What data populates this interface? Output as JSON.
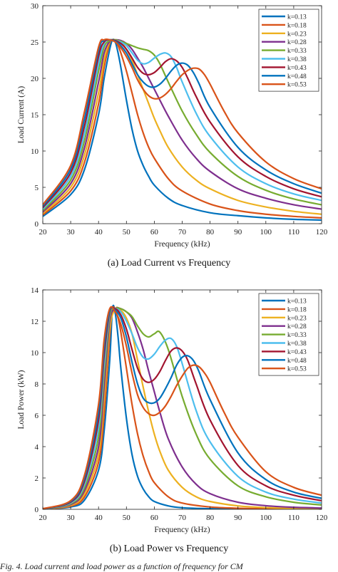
{
  "chart_data": [
    {
      "type": "line",
      "caption": "(a) Load Current vs Frequency",
      "xlabel": "Frequency (kHz)",
      "ylabel": "Load Current (A)",
      "xlim": [
        20,
        120
      ],
      "ylim": [
        0,
        30
      ],
      "xticks": [
        20,
        30,
        40,
        50,
        60,
        70,
        80,
        90,
        100,
        110,
        120
      ],
      "yticks": [
        0,
        5,
        10,
        15,
        20,
        25,
        30
      ],
      "legend_position": "top-right",
      "grid": false,
      "series": [
        {
          "name": "k=0.13",
          "color": "#0072BD",
          "x": [
            20,
            30,
            35,
            40,
            42,
            44,
            45,
            46,
            47,
            48,
            50,
            52,
            54,
            56,
            58,
            60,
            65,
            70,
            80,
            90,
            100,
            110,
            120
          ],
          "y": [
            1.0,
            4.0,
            7.5,
            15.0,
            20.0,
            24.0,
            25.3,
            25.0,
            23.5,
            21.5,
            17.0,
            13.0,
            10.0,
            8.0,
            6.5,
            5.3,
            3.5,
            2.5,
            1.5,
            1.1,
            0.8,
            0.6,
            0.5
          ]
        },
        {
          "name": "k=0.18",
          "color": "#D95319",
          "x": [
            20,
            30,
            35,
            40,
            42,
            44,
            45,
            46,
            47,
            48,
            50,
            52,
            54,
            56,
            58,
            60,
            65,
            70,
            80,
            90,
            100,
            110,
            120
          ],
          "y": [
            1.2,
            4.5,
            8.5,
            16.5,
            21.5,
            24.8,
            25.3,
            25.1,
            24.5,
            23.5,
            21.0,
            18.0,
            15.0,
            12.5,
            10.5,
            9.0,
            6.2,
            4.5,
            2.7,
            1.8,
            1.3,
            1.0,
            0.8
          ]
        },
        {
          "name": "k=0.23",
          "color": "#EDB120",
          "x": [
            20,
            30,
            35,
            40,
            42,
            44,
            46,
            48,
            50,
            52,
            54,
            56,
            58,
            60,
            62,
            65,
            70,
            75,
            80,
            90,
            100,
            110,
            120
          ],
          "y": [
            1.4,
            5.0,
            9.5,
            18.0,
            22.5,
            25.0,
            25.3,
            25.0,
            24.0,
            22.5,
            20.5,
            18.5,
            16.5,
            14.5,
            12.8,
            10.5,
            7.8,
            6.0,
            4.8,
            3.2,
            2.3,
            1.7,
            1.3
          ]
        },
        {
          "name": "k=0.28",
          "color": "#7E2F8E",
          "x": [
            20,
            30,
            35,
            40,
            42,
            44,
            46,
            48,
            50,
            52,
            54,
            56,
            58,
            60,
            62,
            65,
            70,
            75,
            80,
            90,
            100,
            110,
            120
          ],
          "y": [
            1.6,
            5.5,
            10.5,
            19.5,
            23.5,
            25.1,
            25.3,
            25.2,
            24.8,
            24.0,
            22.8,
            21.5,
            20.0,
            18.5,
            17.0,
            14.8,
            11.5,
            9.0,
            7.2,
            4.8,
            3.5,
            2.6,
            2.0
          ]
        },
        {
          "name": "k=0.33",
          "color": "#77AC30",
          "x": [
            20,
            30,
            35,
            40,
            42,
            44,
            46,
            48,
            50,
            52,
            54,
            56,
            58,
            60,
            62,
            65,
            70,
            75,
            80,
            90,
            100,
            110,
            120
          ],
          "y": [
            1.8,
            6.0,
            11.5,
            21.0,
            24.3,
            25.2,
            25.3,
            25.1,
            24.8,
            24.5,
            24.2,
            24.0,
            23.8,
            23.2,
            22.0,
            19.5,
            15.5,
            12.3,
            9.8,
            6.5,
            4.6,
            3.4,
            2.6
          ]
        },
        {
          "name": "k=0.38",
          "color": "#4DBEEE",
          "x": [
            20,
            30,
            35,
            40,
            42,
            44,
            46,
            48,
            50,
            52,
            54,
            56,
            58,
            60,
            62,
            64,
            66,
            68,
            70,
            75,
            80,
            90,
            100,
            110,
            120
          ],
          "y": [
            2.0,
            6.5,
            12.5,
            22.0,
            24.8,
            25.3,
            25.2,
            25.0,
            24.5,
            23.5,
            22.5,
            22.0,
            22.2,
            22.8,
            23.3,
            23.5,
            23.0,
            21.5,
            19.5,
            15.2,
            12.0,
            7.8,
            5.5,
            4.1,
            3.2
          ]
        },
        {
          "name": "k=0.43",
          "color": "#A2142F",
          "x": [
            20,
            30,
            35,
            40,
            42,
            44,
            46,
            48,
            50,
            52,
            54,
            56,
            58,
            60,
            62,
            64,
            66,
            68,
            70,
            72,
            75,
            80,
            90,
            100,
            110,
            120
          ],
          "y": [
            2.2,
            7.0,
            13.5,
            23.0,
            25.0,
            25.3,
            25.2,
            24.8,
            24.0,
            22.8,
            21.5,
            20.7,
            20.5,
            20.8,
            21.5,
            22.3,
            22.7,
            22.4,
            21.5,
            20.0,
            17.5,
            14.0,
            9.2,
            6.5,
            4.8,
            3.7
          ]
        },
        {
          "name": "k=0.48",
          "color": "#0072BD",
          "x": [
            20,
            30,
            35,
            40,
            42,
            44,
            46,
            48,
            50,
            52,
            54,
            56,
            58,
            60,
            62,
            64,
            66,
            68,
            70,
            72,
            74,
            76,
            80,
            90,
            100,
            110,
            120
          ],
          "y": [
            2.4,
            7.5,
            14.5,
            23.8,
            25.2,
            25.3,
            25.1,
            24.5,
            23.5,
            22.0,
            20.5,
            19.5,
            18.9,
            18.8,
            19.2,
            20.0,
            21.0,
            21.8,
            22.1,
            21.8,
            20.8,
            19.3,
            16.0,
            10.5,
            7.4,
            5.5,
            4.2
          ]
        },
        {
          "name": "k=0.53",
          "color": "#D95319",
          "x": [
            20,
            30,
            35,
            40,
            42,
            44,
            46,
            48,
            50,
            52,
            54,
            56,
            58,
            60,
            62,
            64,
            66,
            68,
            70,
            72,
            74,
            76,
            78,
            80,
            85,
            90,
            100,
            110,
            120
          ],
          "y": [
            2.6,
            8.0,
            15.5,
            24.3,
            25.3,
            25.3,
            25.0,
            24.2,
            23.0,
            21.5,
            19.8,
            18.5,
            17.6,
            17.2,
            17.3,
            17.8,
            18.6,
            19.6,
            20.5,
            21.1,
            21.4,
            21.3,
            20.5,
            19.2,
            15.5,
            12.5,
            8.5,
            6.2,
            4.8
          ]
        }
      ]
    },
    {
      "type": "line",
      "caption": "(b) Load Power vs Frequency",
      "xlabel": "Frequency (kHz)",
      "ylabel": "Load Power (kW)",
      "xlim": [
        20,
        120
      ],
      "ylim": [
        0,
        14
      ],
      "xticks": [
        20,
        30,
        40,
        50,
        60,
        70,
        80,
        90,
        100,
        110,
        120
      ],
      "yticks": [
        0,
        2,
        4,
        6,
        8,
        10,
        12,
        14
      ],
      "legend_position": "top-right",
      "grid": false,
      "series": [
        {
          "name": "k=0.13",
          "color": "#0072BD",
          "x": [
            20,
            30,
            35,
            40,
            42,
            44,
            45,
            46,
            47,
            48,
            50,
            52,
            54,
            56,
            58,
            60,
            65,
            70,
            80,
            90,
            100,
            110,
            120
          ],
          "y": [
            0.01,
            0.15,
            0.6,
            2.5,
            5.0,
            9.5,
            12.8,
            12.5,
            11.0,
            9.0,
            5.8,
            3.5,
            2.1,
            1.3,
            0.8,
            0.5,
            0.22,
            0.1,
            0.04,
            0.02,
            0.01,
            0.01,
            0.0
          ]
        },
        {
          "name": "k=0.18",
          "color": "#D95319",
          "x": [
            20,
            30,
            35,
            40,
            42,
            44,
            45,
            46,
            47,
            48,
            50,
            52,
            54,
            56,
            58,
            60,
            65,
            70,
            80,
            90,
            100,
            110,
            120
          ],
          "y": [
            0.01,
            0.2,
            0.8,
            3.0,
            6.0,
            11.0,
            12.8,
            12.7,
            12.2,
            11.3,
            9.0,
            6.7,
            4.8,
            3.4,
            2.4,
            1.7,
            0.8,
            0.4,
            0.15,
            0.07,
            0.04,
            0.02,
            0.01
          ]
        },
        {
          "name": "k=0.23",
          "color": "#EDB120",
          "x": [
            20,
            30,
            35,
            40,
            42,
            44,
            46,
            48,
            50,
            52,
            54,
            56,
            58,
            60,
            62,
            65,
            70,
            75,
            80,
            90,
            100,
            110,
            120
          ],
          "y": [
            0.02,
            0.25,
            1.0,
            3.5,
            7.0,
            11.5,
            12.8,
            12.7,
            12.2,
            11.2,
            9.5,
            7.8,
            6.2,
            4.8,
            3.7,
            2.5,
            1.4,
            0.8,
            0.5,
            0.22,
            0.11,
            0.06,
            0.04
          ]
        },
        {
          "name": "k=0.28",
          "color": "#7E2F8E",
          "x": [
            20,
            30,
            35,
            40,
            42,
            44,
            46,
            48,
            50,
            52,
            54,
            56,
            58,
            60,
            62,
            65,
            70,
            75,
            80,
            90,
            100,
            110,
            120
          ],
          "y": [
            0.02,
            0.3,
            1.2,
            4.0,
            7.8,
            12.0,
            12.8,
            12.8,
            12.6,
            12.2,
            11.3,
            10.2,
            8.8,
            7.5,
            6.2,
            4.5,
            2.7,
            1.6,
            1.0,
            0.45,
            0.23,
            0.13,
            0.08
          ]
        },
        {
          "name": "k=0.33",
          "color": "#77AC30",
          "x": [
            20,
            30,
            35,
            40,
            42,
            44,
            46,
            48,
            50,
            52,
            54,
            56,
            58,
            60,
            62,
            65,
            70,
            75,
            80,
            90,
            100,
            110,
            120
          ],
          "y": [
            0.02,
            0.35,
            1.4,
            4.6,
            8.6,
            12.3,
            12.8,
            12.8,
            12.6,
            12.3,
            11.7,
            11.2,
            11.0,
            11.2,
            11.3,
            10.2,
            7.2,
            4.8,
            3.2,
            1.5,
            0.8,
            0.45,
            0.28
          ]
        },
        {
          "name": "k=0.38",
          "color": "#4DBEEE",
          "x": [
            20,
            30,
            35,
            40,
            42,
            44,
            46,
            48,
            50,
            52,
            54,
            56,
            58,
            60,
            62,
            64,
            66,
            68,
            70,
            75,
            80,
            90,
            100,
            110,
            120
          ],
          "y": [
            0.03,
            0.4,
            1.6,
            5.2,
            9.2,
            12.5,
            12.8,
            12.6,
            12.0,
            11.2,
            10.3,
            9.7,
            9.6,
            9.9,
            10.4,
            10.8,
            10.9,
            10.4,
            9.3,
            6.3,
            4.3,
            2.1,
            1.1,
            0.65,
            0.4
          ]
        },
        {
          "name": "k=0.43",
          "color": "#A2142F",
          "x": [
            20,
            30,
            35,
            40,
            42,
            44,
            46,
            48,
            50,
            52,
            54,
            56,
            58,
            60,
            62,
            64,
            66,
            68,
            70,
            72,
            75,
            80,
            90,
            100,
            110,
            120
          ],
          "y": [
            0.03,
            0.45,
            1.8,
            5.7,
            9.8,
            12.6,
            12.8,
            12.4,
            11.5,
            10.2,
            9.0,
            8.3,
            8.1,
            8.3,
            8.8,
            9.5,
            10.1,
            10.3,
            10.1,
            9.5,
            8.0,
            5.7,
            2.8,
            1.5,
            0.9,
            0.55
          ]
        },
        {
          "name": "k=0.48",
          "color": "#0072BD",
          "x": [
            20,
            30,
            35,
            40,
            42,
            44,
            46,
            48,
            50,
            52,
            54,
            56,
            58,
            60,
            62,
            64,
            66,
            68,
            70,
            72,
            74,
            76,
            80,
            90,
            100,
            110,
            120
          ],
          "y": [
            0.03,
            0.5,
            2.0,
            6.2,
            10.3,
            12.7,
            12.7,
            12.2,
            11.0,
            9.4,
            8.0,
            7.1,
            6.8,
            6.8,
            7.1,
            7.7,
            8.4,
            9.2,
            9.7,
            9.8,
            9.5,
            8.8,
            7.0,
            3.6,
            1.9,
            1.1,
            0.7
          ]
        },
        {
          "name": "k=0.53",
          "color": "#D95319",
          "x": [
            20,
            30,
            35,
            40,
            42,
            44,
            46,
            48,
            50,
            52,
            54,
            56,
            58,
            60,
            62,
            64,
            66,
            68,
            70,
            72,
            74,
            76,
            78,
            80,
            85,
            90,
            100,
            110,
            120
          ],
          "y": [
            0.04,
            0.55,
            2.2,
            6.7,
            10.8,
            12.8,
            12.6,
            11.8,
            10.4,
            8.7,
            7.3,
            6.5,
            6.1,
            6.0,
            6.2,
            6.6,
            7.2,
            7.9,
            8.5,
            9.0,
            9.2,
            9.1,
            8.7,
            8.1,
            6.2,
            4.6,
            2.4,
            1.4,
            0.9
          ]
        }
      ]
    }
  ],
  "footer_text": "Fig. 4.   Load current and load power as a function of frequency for CM"
}
